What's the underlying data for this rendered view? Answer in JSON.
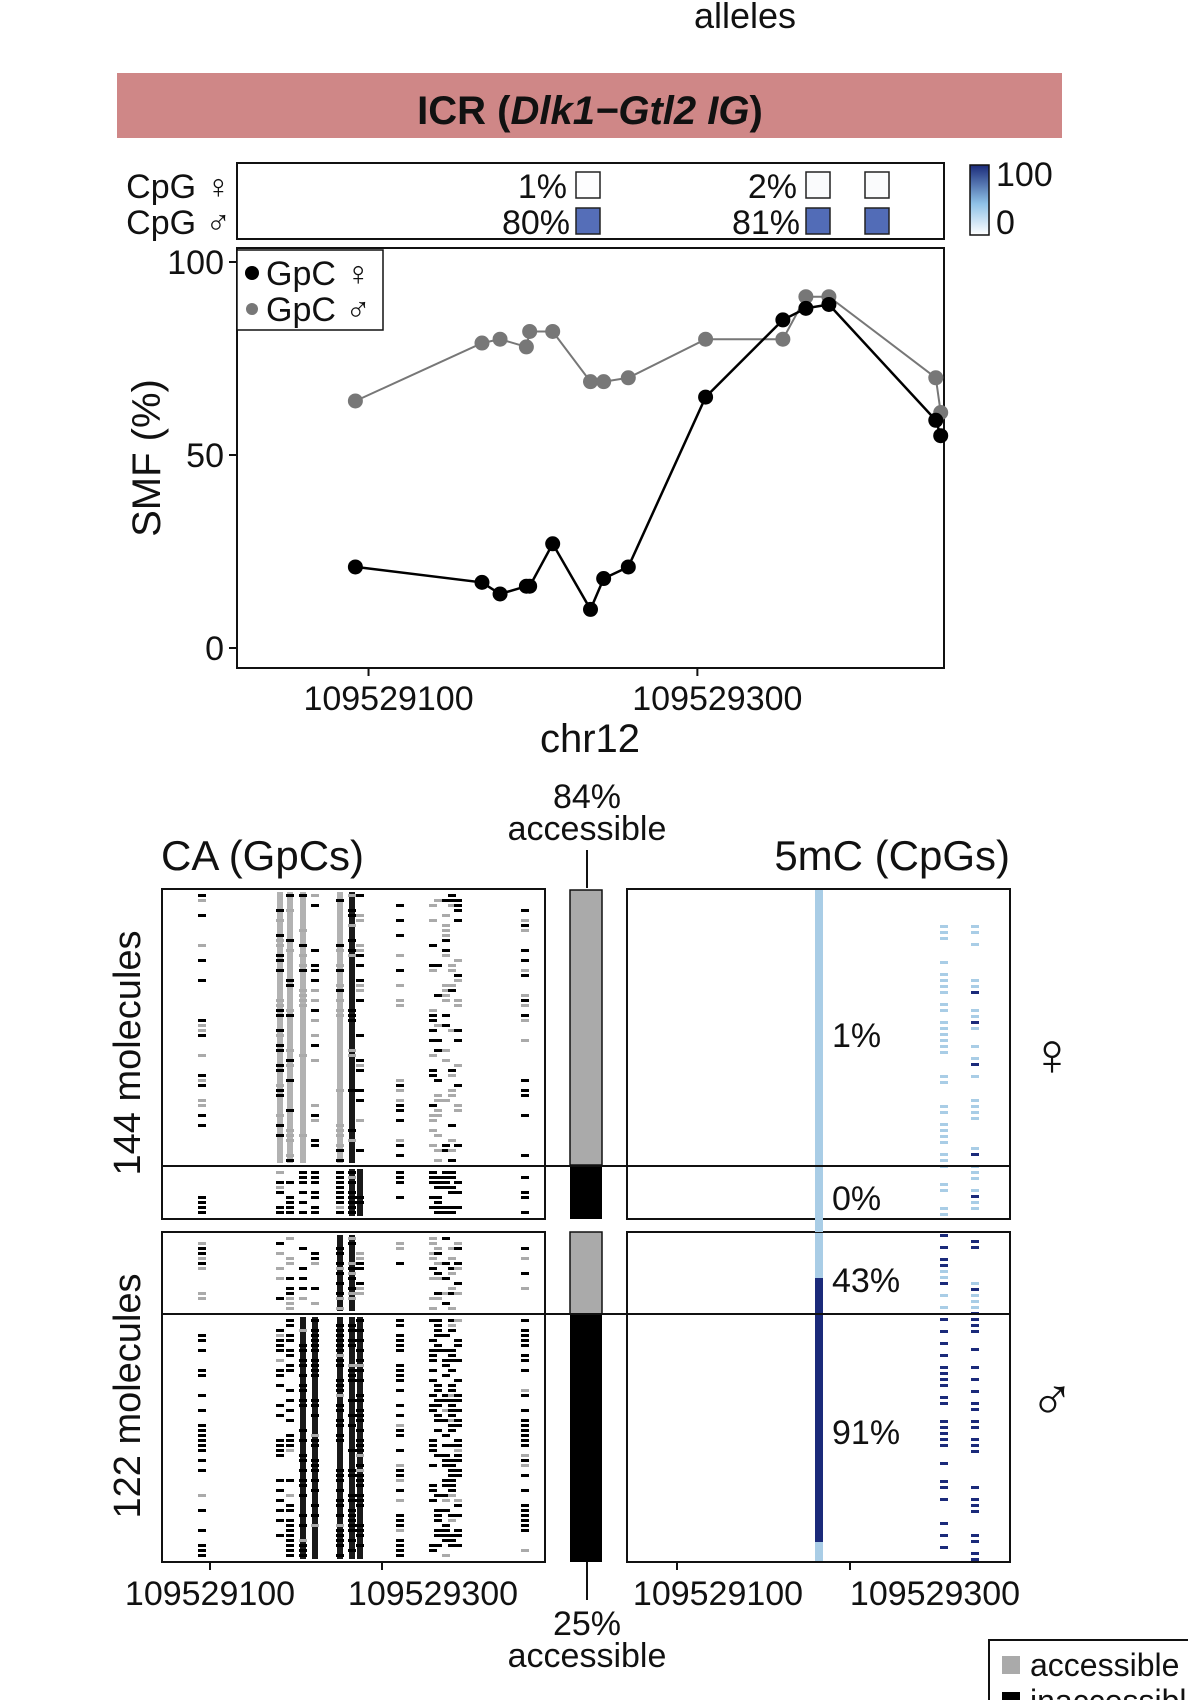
{
  "header": {
    "top_word": "alleles"
  },
  "region": {
    "prefix": "ICR (",
    "gene": "Dlk1−Gtl2 IG",
    "suffix": ")",
    "bar_color": "#cf8787"
  },
  "cpg_strip": {
    "row_female_label": "CpG ♀",
    "row_male_label": "CpG ♂",
    "female_values": [
      1,
      2,
      2
    ],
    "male_values": [
      80,
      81,
      81
    ],
    "female_pct_labels": [
      "1%",
      "2%"
    ],
    "male_pct_labels": [
      "80%",
      "81%"
    ],
    "scale_max_label": "100",
    "scale_min_label": "0",
    "low_color": "#ffffff",
    "high_color": "#1b2a7a"
  },
  "chart_data": {
    "type": "line",
    "title": "",
    "xlabel": "chr12",
    "ylabel": "SMF (%)",
    "xlim": [
      109529020,
      109529450
    ],
    "ylim": [
      0,
      100
    ],
    "xticks": [
      109529100,
      109529300
    ],
    "xtick_labels": [
      "109529100",
      "109529300"
    ],
    "yticks": [
      0,
      50,
      100
    ],
    "ytick_labels": [
      "0",
      "50",
      "100"
    ],
    "legend": [
      "GpC ♀",
      "GpC ♂"
    ],
    "legend_position": "top-left",
    "series": [
      {
        "name": "GpC ♀",
        "color": "#000000",
        "x": [
          109529092,
          109529169,
          109529180,
          109529196,
          109529198,
          109529212,
          109529235,
          109529243,
          109529258,
          109529305,
          109529352,
          109529366,
          109529380,
          109529445,
          109529448
        ],
        "y": [
          21,
          17,
          14,
          16,
          16,
          27,
          10,
          18,
          21,
          65,
          85,
          88,
          89,
          59,
          55
        ]
      },
      {
        "name": "GpC ♂",
        "color": "#777777",
        "x": [
          109529092,
          109529169,
          109529180,
          109529196,
          109529198,
          109529212,
          109529235,
          109529243,
          109529258,
          109529305,
          109529352,
          109529366,
          109529380,
          109529445,
          109529448
        ],
        "y": [
          64,
          79,
          80,
          78,
          82,
          82,
          69,
          69,
          70,
          80,
          80,
          91,
          91,
          70,
          61
        ]
      }
    ]
  },
  "top_accessible": {
    "pct": "84%",
    "word": "accessible"
  },
  "bottom_accessible": {
    "pct": "25%",
    "word": "accessible"
  },
  "heatmaps": {
    "ca_title": "CA (GpCs)",
    "mc_title": "5mC (CpGs)",
    "female_count_label": "144 molecules",
    "male_count_label": "122 molecules",
    "female_symbol": "♀",
    "male_symbol": "♂",
    "mc_pct_labels": [
      "1%",
      "0%",
      "43%",
      "91%"
    ],
    "x_labels_left": [
      "109529100",
      "109529300"
    ],
    "x_labels_right": [
      "109529100",
      "109529300"
    ],
    "accessible_color": "#aaaaaa",
    "inaccessible_color": "#000000",
    "methyl_low_color": "#a9cde6",
    "methyl_high_color": "#1b2a7a"
  },
  "legend_box": {
    "accessible_label": "accessible",
    "inaccessible_label": "inaccessible"
  }
}
